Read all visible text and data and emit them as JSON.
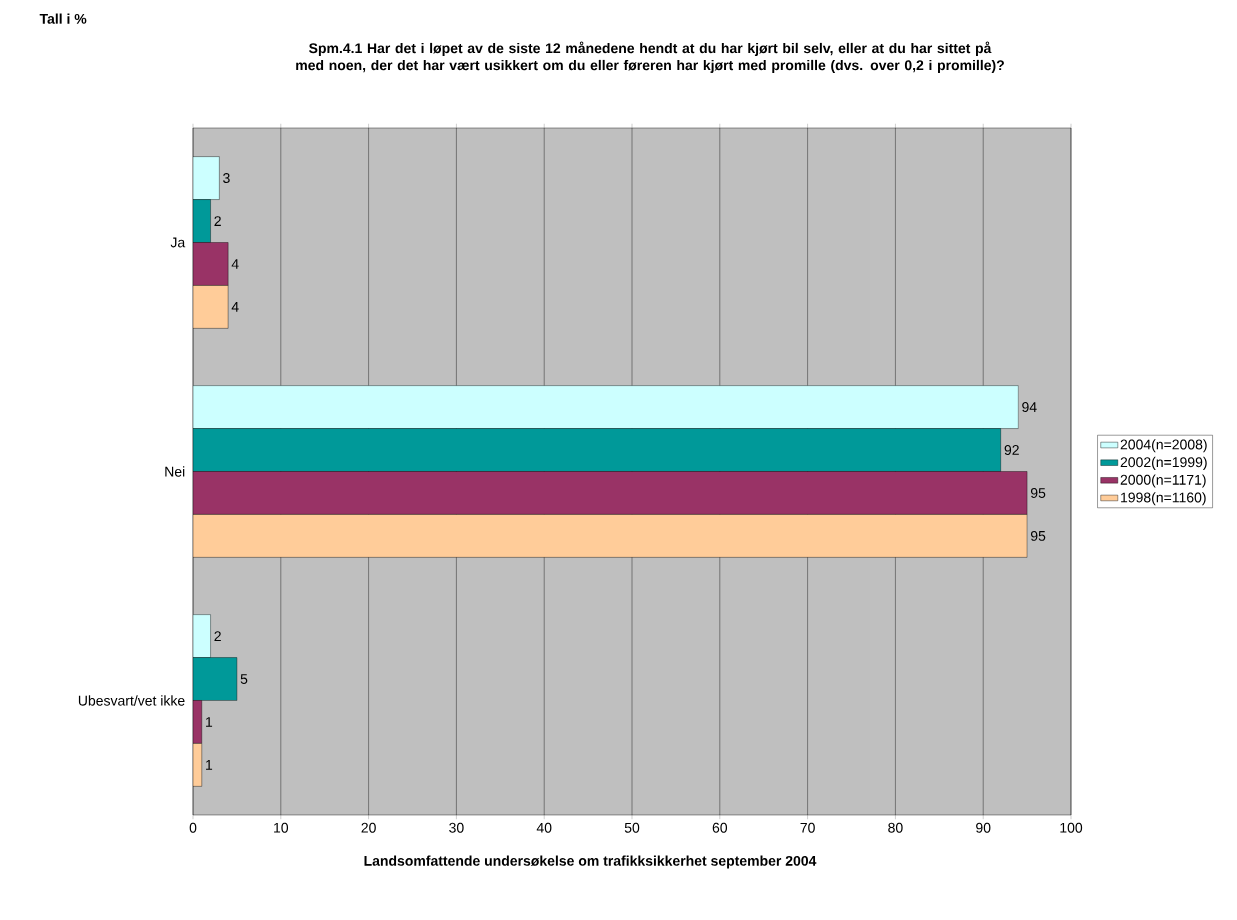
{
  "chart_data": {
    "type": "bar",
    "orientation": "horizontal",
    "title": "Spm.4.1 Har det i løpet av de siste 12 månedene hendt at du har kjørt bil selv, eller at du har sittet på med noen, der det har vært usikkert om du eller føreren har kjørt med promille (dvs. over 0,2 i promille)?",
    "annotations": [
      "Tall i %",
      "Landsomfattende undersøkelse om trafikksikkerhet september 2004"
    ],
    "categories": [
      "Ja",
      "Nei",
      "Ubesvart/vet ikke"
    ],
    "series": [
      {
        "name": "2004(n=2008)",
        "color": "#ccffff",
        "values": [
          3,
          94,
          2
        ]
      },
      {
        "name": "2002(n=1999)",
        "color": "#009999",
        "values": [
          2,
          92,
          5
        ]
      },
      {
        "name": "2000(n=1171)",
        "color": "#993366",
        "values": [
          4,
          95,
          1
        ]
      },
      {
        "name": "1998(n=1160)",
        "color": "#ffcc99",
        "values": [
          4,
          95,
          1
        ]
      }
    ],
    "xlim": [
      0,
      100
    ],
    "xticks": [
      0,
      10,
      20,
      30,
      40,
      50,
      60,
      70,
      80,
      90,
      100
    ],
    "grid": "x",
    "legend": "right",
    "data_labels": true
  }
}
